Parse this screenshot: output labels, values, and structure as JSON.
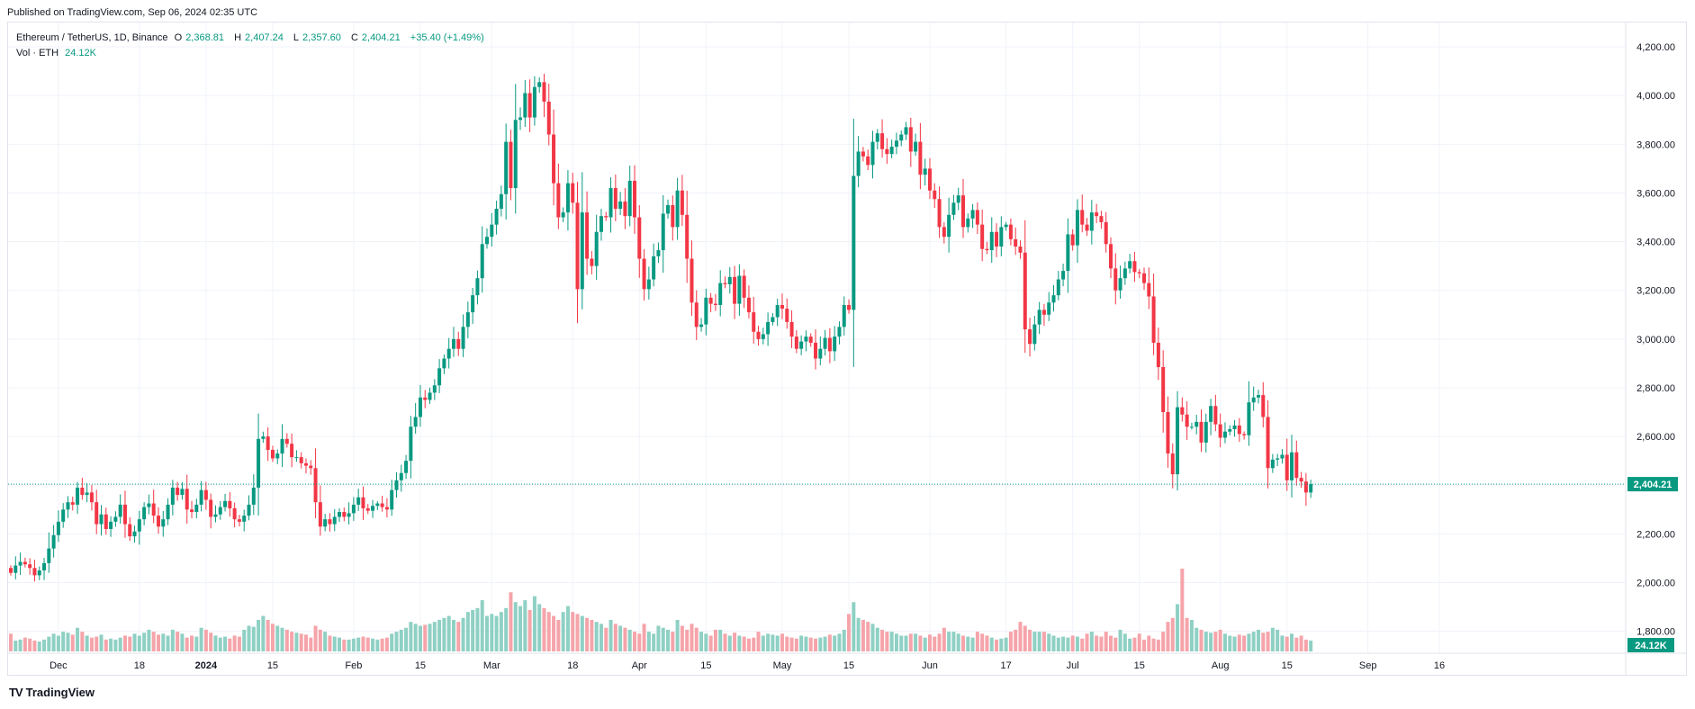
{
  "header": {
    "published": "Published on TradingView.com, Sep 06, 2024 02:35 UTC"
  },
  "legend": {
    "symbol": "Ethereum / TetherUS, 1D, Binance",
    "o_label": "O",
    "o": "2,368.81",
    "h_label": "H",
    "h": "2,407.24",
    "l_label": "L",
    "l": "2,357.60",
    "c_label": "C",
    "c": "2,404.21",
    "change": "+35.40 (+1.49%)",
    "vol_label": "Vol · ETH",
    "vol": "24.12K"
  },
  "footer": {
    "brand": "TradingView",
    "logo": "TV"
  },
  "colors": {
    "up": "#089981",
    "down": "#f23645",
    "vol_up": "#8fd0c4",
    "vol_down": "#f5a4aa",
    "grid": "#f0f3fa"
  },
  "chart_data": {
    "type": "candlestick",
    "symbol": "ETHUSDT",
    "interval": "1D",
    "y_ticks": [
      "4,200.00",
      "4,000.00",
      "3,800.00",
      "3,600.00",
      "3,400.00",
      "3,200.00",
      "3,000.00",
      "2,800.00",
      "2,600.00",
      "2,400.00",
      "2,200.00",
      "2,000.00",
      "1,800.00"
    ],
    "y_tick_values": [
      4200,
      4000,
      3800,
      3600,
      3400,
      3200,
      3000,
      2800,
      2600,
      2400,
      2200,
      2000,
      1800
    ],
    "ylim": [
      1710,
      4300
    ],
    "x_labels": [
      {
        "label": "Dec",
        "date": "2023-12-01"
      },
      {
        "label": "18",
        "date": "2023-12-18"
      },
      {
        "label": "2024",
        "date": "2024-01-01"
      },
      {
        "label": "15",
        "date": "2024-01-15"
      },
      {
        "label": "Feb",
        "date": "2024-02-01"
      },
      {
        "label": "15",
        "date": "2024-02-15"
      },
      {
        "label": "Mar",
        "date": "2024-03-01"
      },
      {
        "label": "18",
        "date": "2024-03-18"
      },
      {
        "label": "Apr",
        "date": "2024-04-01"
      },
      {
        "label": "15",
        "date": "2024-04-15"
      },
      {
        "label": "May",
        "date": "2024-05-01"
      },
      {
        "label": "15",
        "date": "2024-05-15"
      },
      {
        "label": "Jun",
        "date": "2024-06-01"
      },
      {
        "label": "17",
        "date": "2024-06-17"
      },
      {
        "label": "Jul",
        "date": "2024-07-01"
      },
      {
        "label": "15",
        "date": "2024-07-15"
      },
      {
        "label": "Aug",
        "date": "2024-08-01"
      },
      {
        "label": "15",
        "date": "2024-08-15"
      },
      {
        "label": "Sep",
        "date": "2024-09-01"
      },
      {
        "label": "16",
        "date": "2024-09-16"
      }
    ],
    "start_date": "2023-11-21",
    "closes": [
      2040,
      2070,
      2085,
      2075,
      2060,
      2030,
      2050,
      2080,
      2140,
      2195,
      2250,
      2300,
      2330,
      2320,
      2390,
      2360,
      2370,
      2330,
      2240,
      2280,
      2220,
      2250,
      2270,
      2320,
      2240,
      2190,
      2210,
      2260,
      2310,
      2325,
      2275,
      2230,
      2260,
      2320,
      2390,
      2360,
      2385,
      2300,
      2290,
      2320,
      2380,
      2340,
      2270,
      2280,
      2310,
      2335,
      2305,
      2260,
      2250,
      2275,
      2320,
      2390,
      2590,
      2600,
      2545,
      2510,
      2530,
      2590,
      2570,
      2515,
      2515,
      2490,
      2480,
      2470,
      2330,
      2230,
      2260,
      2240,
      2270,
      2290,
      2270,
      2285,
      2320,
      2350,
      2305,
      2295,
      2315,
      2325,
      2310,
      2300,
      2380,
      2420,
      2450,
      2500,
      2640,
      2680,
      2760,
      2750,
      2780,
      2810,
      2880,
      2920,
      2960,
      3000,
      2960,
      3050,
      3110,
      3180,
      3250,
      3390,
      3420,
      3470,
      3535,
      3595,
      3810,
      3620,
      3900,
      3910,
      4010,
      3910,
      4035,
      4055,
      3975,
      3840,
      3640,
      3500,
      3520,
      3640,
      3560,
      3205,
      3520,
      3330,
      3300,
      3440,
      3505,
      3500,
      3620,
      3535,
      3565,
      3505,
      3650,
      3500,
      3330,
      3205,
      3245,
      3340,
      3365,
      3515,
      3550,
      3460,
      3610,
      3510,
      3330,
      3150,
      3050,
      3060,
      3170,
      3145,
      3140,
      3230,
      3225,
      3255,
      3145,
      3260,
      3170,
      3110,
      3030,
      3000,
      3020,
      3070,
      3090,
      3140,
      3125,
      3070,
      3010,
      2960,
      2990,
      3010,
      2985,
      2920,
      2960,
      3005,
      2950,
      3010,
      3050,
      3140,
      3120,
      3670,
      3770,
      3750,
      3715,
      3810,
      3845,
      3780,
      3760,
      3790,
      3815,
      3840,
      3870,
      3770,
      3810,
      3675,
      3700,
      3610,
      3575,
      3460,
      3420,
      3510,
      3560,
      3590,
      3460,
      3495,
      3530,
      3470,
      3370,
      3365,
      3440,
      3380,
      3460,
      3470,
      3410,
      3380,
      3355,
      3040,
      2980,
      3060,
      3120,
      3100,
      3150,
      3180,
      3245,
      3280,
      3430,
      3385,
      3530,
      3470,
      3445,
      3520,
      3505,
      3480,
      3390,
      3290,
      3200,
      3250,
      3290,
      3320,
      3275,
      3270,
      3230,
      3175,
      2985,
      2885,
      2700,
      2530,
      2445,
      2720,
      2690,
      2640,
      2640,
      2660,
      2575,
      2660,
      2725,
      2650,
      2595,
      2620,
      2630,
      2645,
      2610,
      2605,
      2740,
      2760,
      2770,
      2680,
      2470,
      2505,
      2510,
      2525,
      2420,
      2535,
      2430,
      2415,
      2370,
      2404.21
    ],
    "volumes_k": [
      90,
      55,
      60,
      70,
      65,
      55,
      50,
      60,
      75,
      90,
      80,
      100,
      95,
      85,
      120,
      100,
      80,
      70,
      75,
      85,
      60,
      65,
      60,
      70,
      80,
      75,
      90,
      80,
      95,
      110,
      100,
      85,
      90,
      80,
      110,
      100,
      90,
      70,
      80,
      75,
      120,
      110,
      95,
      80,
      70,
      75,
      65,
      80,
      75,
      110,
      130,
      125,
      160,
      180,
      160,
      140,
      130,
      120,
      110,
      100,
      95,
      90,
      85,
      70,
      130,
      110,
      100,
      80,
      75,
      70,
      60,
      60,
      65,
      70,
      75,
      70,
      65,
      60,
      65,
      70,
      90,
      100,
      110,
      120,
      150,
      140,
      130,
      135,
      140,
      150,
      160,
      170,
      180,
      160,
      150,
      170,
      200,
      210,
      220,
      260,
      180,
      190,
      180,
      200,
      220,
      300,
      250,
      230,
      260,
      210,
      280,
      240,
      220,
      200,
      180,
      160,
      200,
      230,
      200,
      190,
      180,
      170,
      160,
      150,
      140,
      120,
      160,
      140,
      130,
      120,
      110,
      100,
      90,
      140,
      100,
      90,
      130,
      120,
      110,
      100,
      160,
      130,
      110,
      140,
      120,
      100,
      90,
      80,
      110,
      110,
      90,
      80,
      95,
      80,
      75,
      65,
      70,
      100,
      80,
      90,
      85,
      80,
      90,
      75,
      70,
      65,
      80,
      75,
      70,
      65,
      70,
      75,
      85,
      80,
      90,
      110,
      190,
      250,
      170,
      160,
      150,
      140,
      120,
      110,
      100,
      100,
      90,
      80,
      80,
      90,
      90,
      80,
      70,
      85,
      75,
      90,
      120,
      100,
      100,
      90,
      80,
      75,
      70,
      100,
      90,
      80,
      70,
      60,
      65,
      70,
      100,
      110,
      150,
      130,
      110,
      100,
      100,
      100,
      90,
      80,
      70,
      75,
      70,
      80,
      75,
      65,
      90,
      100,
      80,
      75,
      100,
      80,
      70,
      110,
      90,
      65,
      70,
      90,
      60,
      80,
      65,
      60,
      100,
      150,
      170,
      240,
      420,
      170,
      160,
      120,
      110,
      100,
      95,
      100,
      110,
      90,
      80,
      75,
      85,
      80,
      90,
      100,
      110,
      95,
      100,
      120,
      110,
      80,
      75,
      90,
      70,
      80,
      60,
      55,
      24.12
    ]
  }
}
